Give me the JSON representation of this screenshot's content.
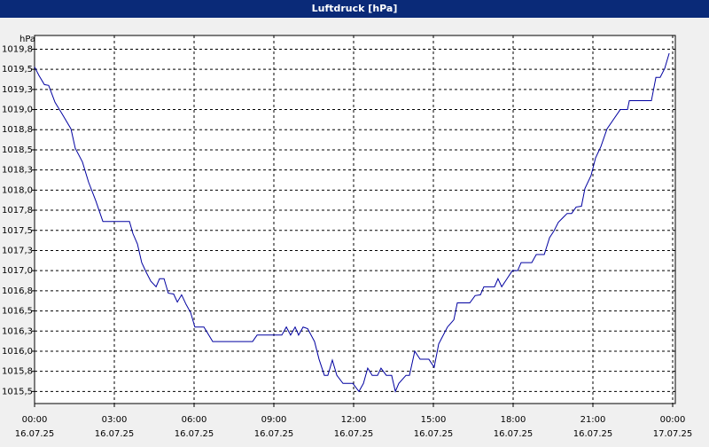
{
  "chart_data": {
    "type": "line",
    "title": "Luftdruck [hPa]",
    "y_label": "hPa",
    "x": [
      0,
      0.17,
      0.37,
      0.53,
      0.77,
      1.03,
      1.37,
      1.53,
      1.8,
      2.03,
      2.3,
      2.57,
      3.57,
      3.7,
      3.87,
      4.03,
      4.2,
      4.37,
      4.57,
      4.7,
      4.87,
      5.03,
      5.23,
      5.37,
      5.53,
      5.7,
      5.87,
      6.03,
      6.37,
      6.7,
      8.2,
      8.37,
      9.3,
      9.47,
      9.63,
      9.8,
      9.93,
      10.1,
      10.27,
      10.53,
      10.7,
      10.9,
      11.03,
      11.2,
      11.37,
      11.6,
      11.97,
      12.2,
      12.37,
      12.53,
      12.7,
      12.9,
      13.03,
      13.23,
      13.43,
      13.57,
      13.7,
      13.97,
      14.1,
      14.3,
      14.5,
      14.83,
      15.03,
      15.2,
      15.53,
      15.77,
      15.9,
      16.37,
      16.57,
      16.77,
      16.9,
      17.3,
      17.43,
      17.57,
      17.77,
      17.97,
      18.17,
      18.3,
      18.7,
      18.87,
      19.17,
      19.37,
      19.53,
      19.7,
      20.03,
      20.2,
      20.37,
      20.57,
      20.7,
      20.93,
      21.1,
      21.3,
      21.53,
      22.03,
      22.3,
      22.37,
      23.2,
      23.37,
      23.53,
      23.7,
      23.87
    ],
    "series": [
      {
        "color": "#0000a0",
        "values": [
          1019.53,
          1019.42,
          1019.31,
          1019.3,
          1019.09,
          1018.95,
          1018.76,
          1018.52,
          1018.35,
          1018.1,
          1017.87,
          1017.61,
          1017.61,
          1017.46,
          1017.33,
          1017.1,
          1016.98,
          1016.87,
          1016.8,
          1016.9,
          1016.9,
          1016.72,
          1016.71,
          1016.61,
          1016.7,
          1016.58,
          1016.48,
          1016.3,
          1016.3,
          1016.12,
          1016.12,
          1016.2,
          1016.2,
          1016.3,
          1016.2,
          1016.3,
          1016.2,
          1016.3,
          1016.28,
          1016.12,
          1015.9,
          1015.7,
          1015.7,
          1015.89,
          1015.7,
          1015.6,
          1015.6,
          1015.5,
          1015.6,
          1015.79,
          1015.7,
          1015.7,
          1015.79,
          1015.7,
          1015.7,
          1015.5,
          1015.6,
          1015.7,
          1015.7,
          1016.0,
          1015.9,
          1015.9,
          1015.8,
          1016.09,
          1016.3,
          1016.39,
          1016.6,
          1016.6,
          1016.69,
          1016.7,
          1016.8,
          1016.8,
          1016.9,
          1016.8,
          1016.9,
          1017.0,
          1017.0,
          1017.1,
          1017.1,
          1017.2,
          1017.2,
          1017.41,
          1017.49,
          1017.6,
          1017.71,
          1017.71,
          1017.79,
          1017.8,
          1018.02,
          1018.18,
          1018.4,
          1018.54,
          1018.76,
          1019.0,
          1019.0,
          1019.11,
          1019.11,
          1019.4,
          1019.4,
          1019.51,
          1019.7
        ]
      }
    ],
    "xlim": [
      0,
      24.1
    ],
    "xticks": [
      {
        "value": 0,
        "label": "00:00"
      },
      {
        "value": 3,
        "label": "03:00"
      },
      {
        "value": 6,
        "label": "06:00"
      },
      {
        "value": 9,
        "label": "09:00"
      },
      {
        "value": 12,
        "label": "12:00"
      },
      {
        "value": 15,
        "label": "15:00"
      },
      {
        "value": 18,
        "label": "18:00"
      },
      {
        "value": 21,
        "label": "21:00"
      },
      {
        "value": 24,
        "label": "00:00"
      }
    ],
    "xtick_dates": [
      "16.07.25",
      "16.07.25",
      "16.07.25",
      "16.07.25",
      "16.07.25",
      "16.07.25",
      "16.07.25",
      "16.07.25",
      "17.07.25"
    ],
    "ylim": [
      1015.35,
      1019.92
    ],
    "yticks": [
      {
        "value": 1015.5,
        "label": "1015,5"
      },
      {
        "value": 1015.75,
        "label": "1015,8"
      },
      {
        "value": 1016,
        "label": "1016,0"
      },
      {
        "value": 1016.25,
        "label": "1016,3"
      },
      {
        "value": 1016.5,
        "label": "1016,5"
      },
      {
        "value": 1016.75,
        "label": "1016,8"
      },
      {
        "value": 1017,
        "label": "1017,0"
      },
      {
        "value": 1017.25,
        "label": "1017,3"
      },
      {
        "value": 1017.5,
        "label": "1017,5"
      },
      {
        "value": 1017.75,
        "label": "1017,8"
      },
      {
        "value": 1018,
        "label": "1018,0"
      },
      {
        "value": 1018.25,
        "label": "1018,3"
      },
      {
        "value": 1018.5,
        "label": "1018,5"
      },
      {
        "value": 1018.75,
        "label": "1018,8"
      },
      {
        "value": 1019,
        "label": "1019,0"
      },
      {
        "value": 1019.25,
        "label": "1019,3"
      },
      {
        "value": 1019.5,
        "label": "1019,5"
      },
      {
        "value": 1019.75,
        "label": "1019,8"
      }
    ],
    "grid": true
  }
}
